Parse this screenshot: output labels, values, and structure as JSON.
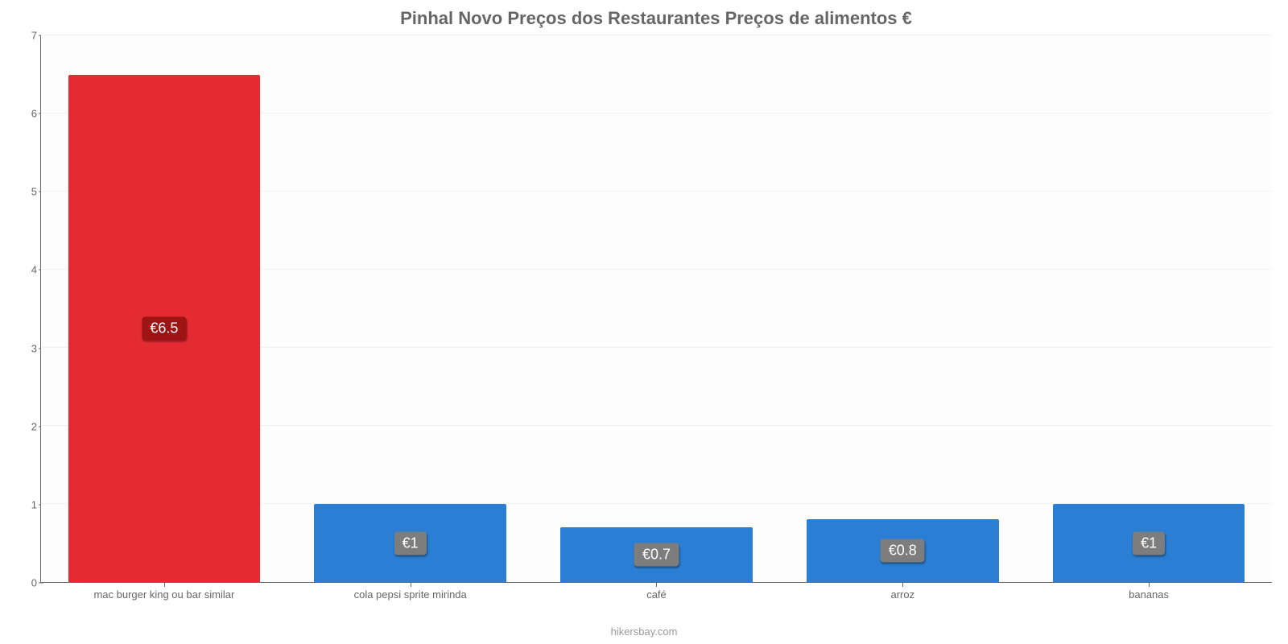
{
  "chart": {
    "type": "bar",
    "title": "Pinhal Novo Preços dos Restaurantes Preços de alimentos €",
    "title_fontsize": 22,
    "title_color": "#666666",
    "footer": "hikersbay.com",
    "footer_color": "#999999",
    "background_color": "#fdfdfd",
    "axis_color": "#666666",
    "grid_color": "#f2f2f2",
    "xlabel_fontsize": 13,
    "ylabel_fontsize": 13,
    "label_color": "#666666",
    "ylim": [
      0,
      7
    ],
    "ytick_step": 1,
    "yticks": [
      0,
      1,
      2,
      3,
      4,
      5,
      6,
      7
    ],
    "bar_width": 0.78,
    "value_label_fontsize": 18,
    "value_label_text_color": "#ffffff",
    "categories": [
      "mac burger king ou bar similar",
      "cola pepsi sprite mirinda",
      "café",
      "arroz",
      "bananas"
    ],
    "values": [
      6.5,
      1,
      0.7,
      0.8,
      1
    ],
    "value_labels": [
      "€6.5",
      "€1",
      "€0.7",
      "€0.8",
      "€1"
    ],
    "bar_colors": [
      "#e52b32",
      "#2a7fd4",
      "#2a7fd4",
      "#2a7fd4",
      "#2a7fd4"
    ],
    "value_label_bg_colors": [
      "#9e1313",
      "#7d7d7d",
      "#7d7d7d",
      "#7d7d7d",
      "#7d7d7d"
    ]
  }
}
